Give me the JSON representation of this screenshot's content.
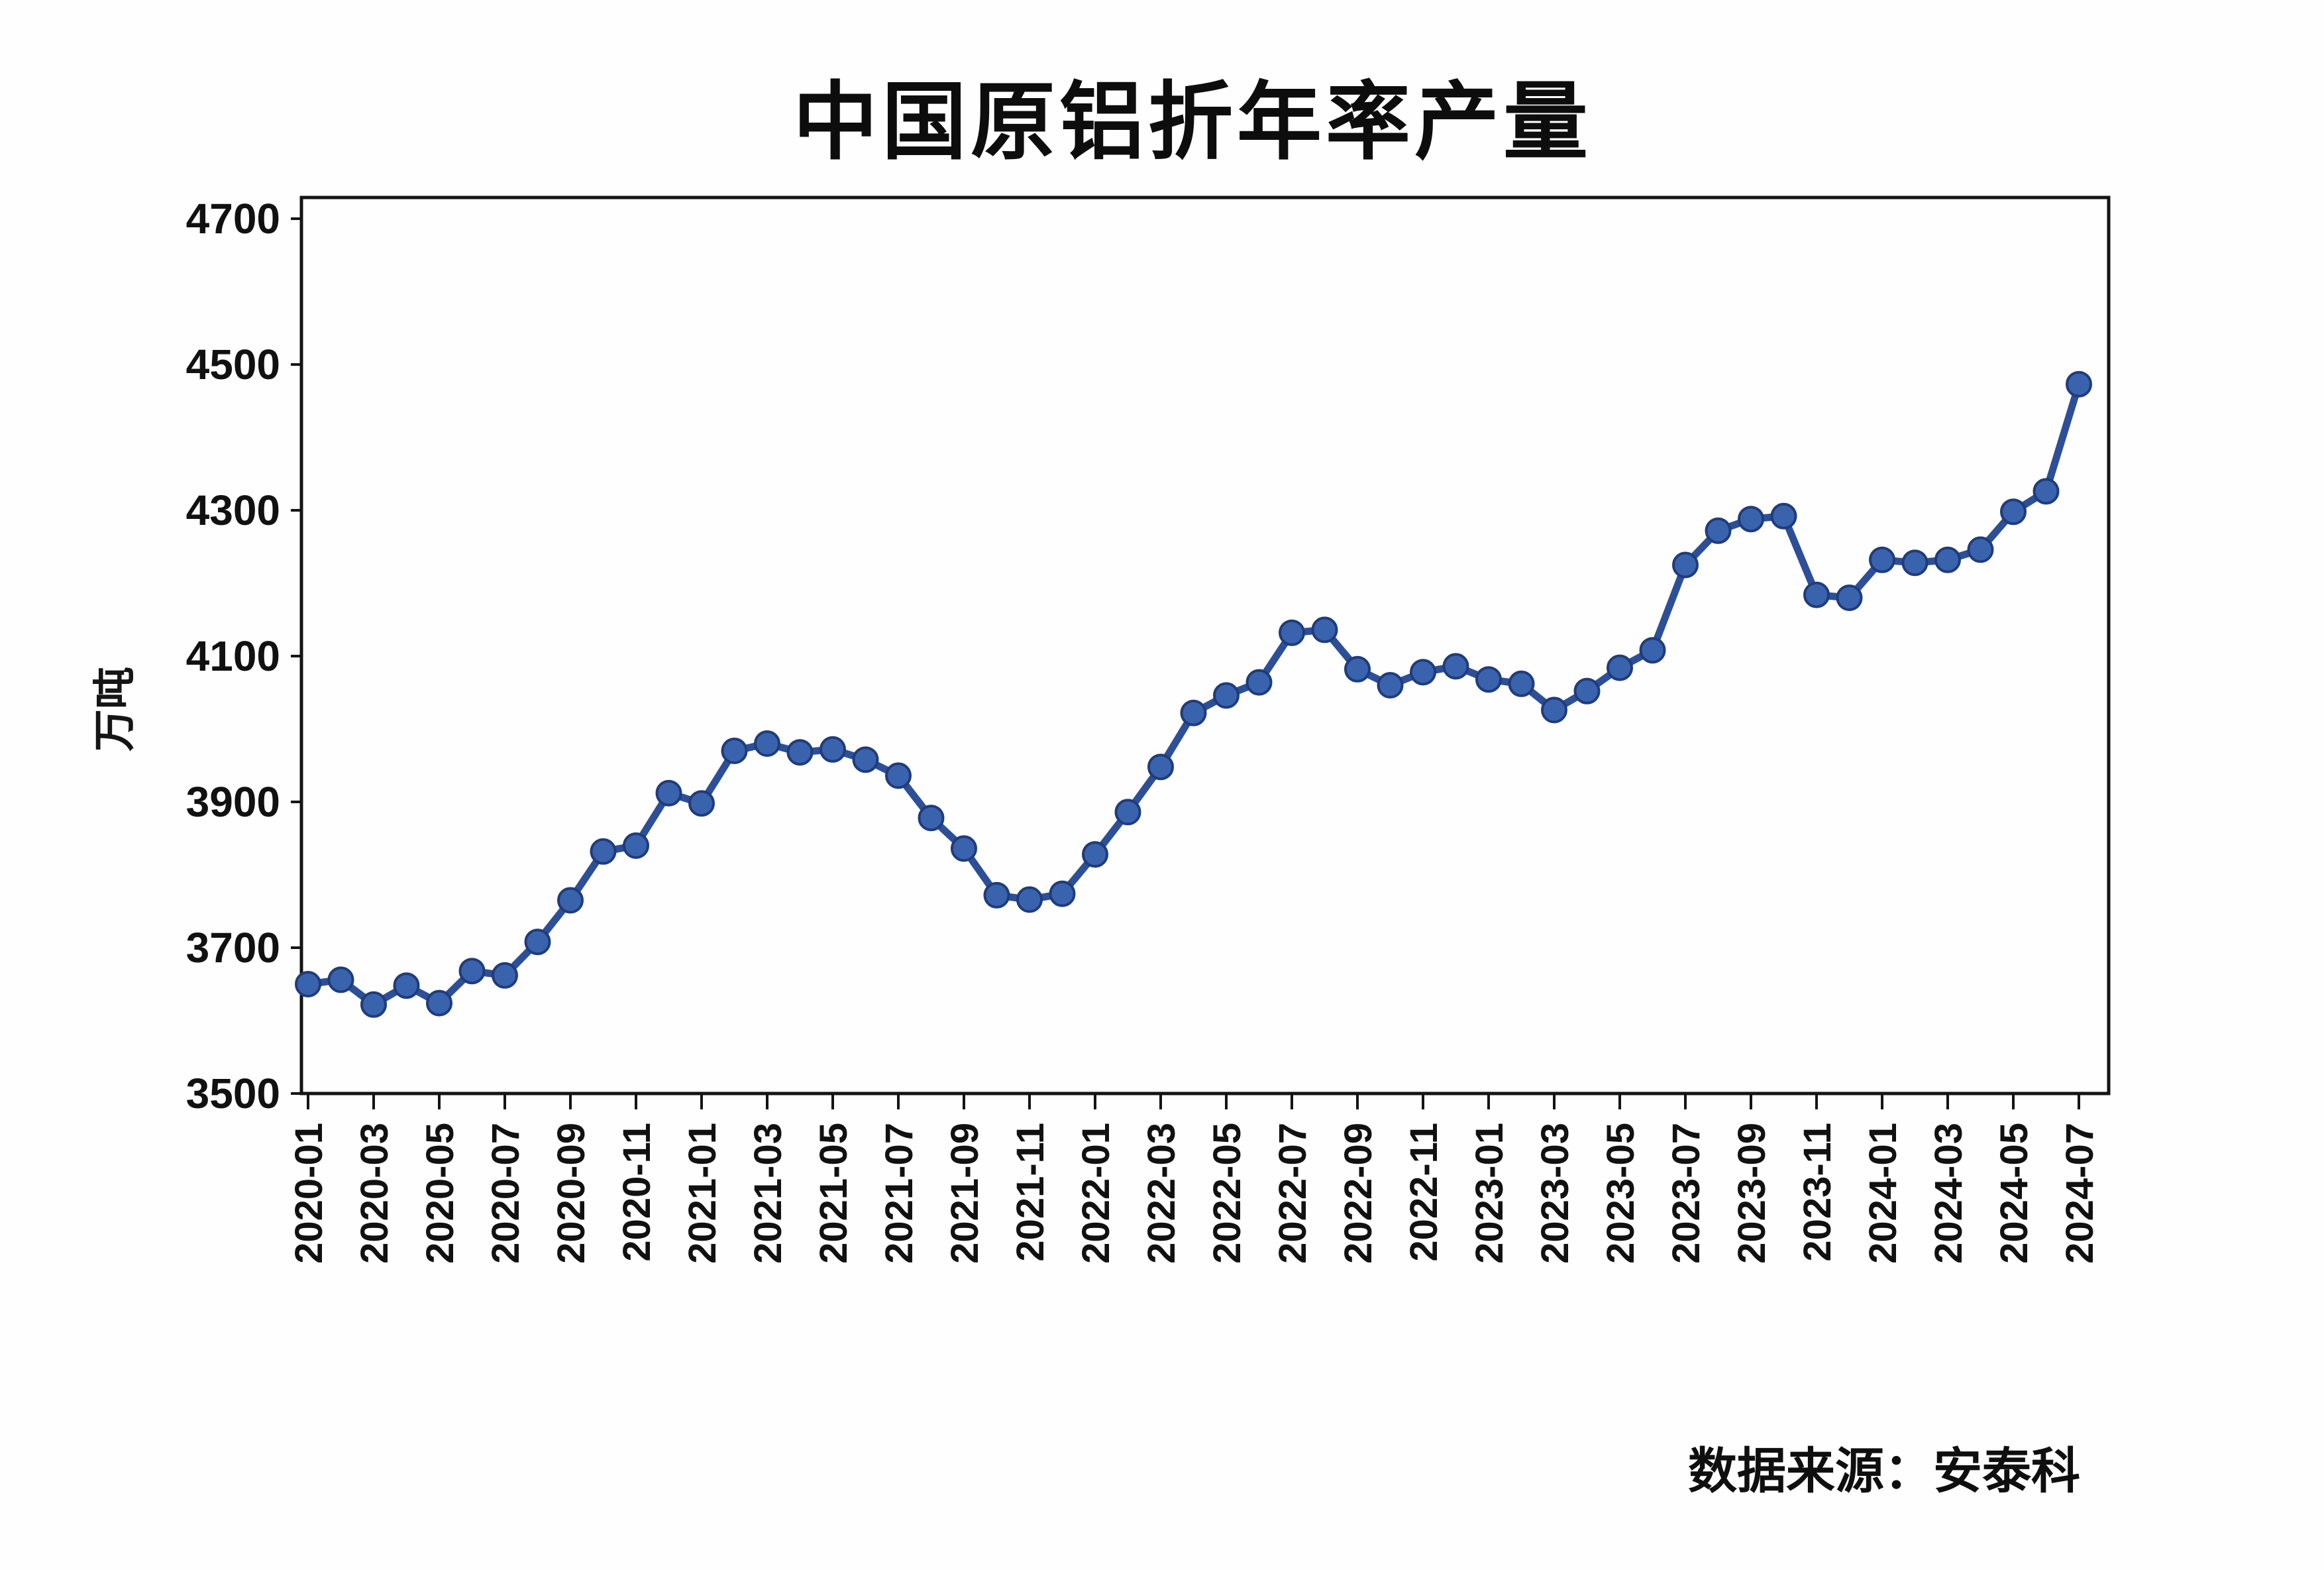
{
  "title": "中国原铝折年率产量",
  "source_note": "数据来源：安泰科",
  "y_axis": {
    "unit_label": "万吨",
    "ticks": [
      3500,
      3700,
      3900,
      4100,
      4300,
      4500,
      4700
    ]
  },
  "x_axis": {
    "visible_tick_labels": [
      "2020-01",
      "2020-03",
      "2020-05",
      "2020-07",
      "2020-09",
      "2020-11",
      "2021-01",
      "2021-03",
      "2021-05",
      "2021-07",
      "2021-09",
      "2021-11",
      "2022-01",
      "2022-03",
      "2022-05",
      "2022-07",
      "2022-09",
      "2022-11",
      "2023-01",
      "2023-03",
      "2023-05",
      "2023-07",
      "2023-09",
      "2023-11",
      "2024-01",
      "2024-03",
      "2024-05",
      "2024-07"
    ]
  },
  "colors": {
    "line": "#2d4f97",
    "marker_fill": "#3a63ad",
    "marker_edge": "#1f3c7c",
    "axis": "#141414",
    "text": "#111111"
  },
  "chart_data": {
    "type": "line",
    "title": "中国原铝折年率产量",
    "xlabel": "",
    "ylabel": "万吨",
    "ylim": [
      3500,
      4700
    ],
    "y_tick_step": 200,
    "grid": false,
    "legend_position": "none",
    "x": [
      "2020-01",
      "2020-02",
      "2020-03",
      "2020-04",
      "2020-05",
      "2020-06",
      "2020-07",
      "2020-08",
      "2020-09",
      "2020-10",
      "2020-11",
      "2020-12",
      "2021-01",
      "2021-02",
      "2021-03",
      "2021-04",
      "2021-05",
      "2021-06",
      "2021-07",
      "2021-08",
      "2021-09",
      "2021-10",
      "2021-11",
      "2021-12",
      "2022-01",
      "2022-02",
      "2022-03",
      "2022-04",
      "2022-05",
      "2022-06",
      "2022-07",
      "2022-08",
      "2022-09",
      "2022-10",
      "2022-11",
      "2022-12",
      "2023-01",
      "2023-02",
      "2023-03",
      "2023-04",
      "2023-05",
      "2023-06",
      "2023-07",
      "2023-08",
      "2023-09",
      "2023-10",
      "2023-11",
      "2023-12",
      "2024-01",
      "2024-02",
      "2024-03",
      "2024-04",
      "2024-05",
      "2024-06",
      "2024-07"
    ],
    "values": [
      3650,
      3656,
      3622,
      3648,
      3624,
      3668,
      3662,
      3708,
      3765,
      3832,
      3840,
      3912,
      3898,
      3970,
      3980,
      3968,
      3972,
      3958,
      3936,
      3878,
      3836,
      3772,
      3766,
      3774,
      3828,
      3886,
      3948,
      4022,
      4046,
      4064,
      4132,
      4136,
      4082,
      4060,
      4078,
      4086,
      4068,
      4062,
      4026,
      4052,
      4084,
      4108,
      4225,
      4272,
      4288,
      4292,
      4184,
      4180,
      4232,
      4228,
      4232,
      4246,
      4298,
      4326,
      4473
    ]
  }
}
